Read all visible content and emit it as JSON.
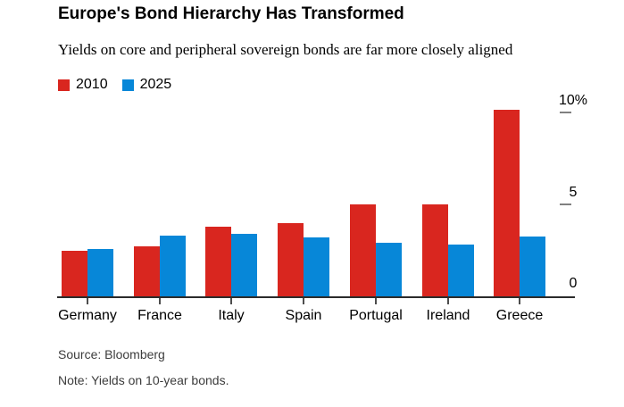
{
  "chart_data": {
    "type": "bar",
    "title": "Europe's Bond Hierarchy Has Transformed",
    "subtitle": "Yields on core and peripheral sovereign bonds are far more closely aligned",
    "categories": [
      "Germany",
      "France",
      "Italy",
      "Spain",
      "Portugal",
      "Ireland",
      "Greece"
    ],
    "series": [
      {
        "name": "2010",
        "color": "#d9261f",
        "values": [
          2.5,
          2.75,
          3.8,
          4.0,
          5.0,
          5.0,
          10.2
        ]
      },
      {
        "name": "2025",
        "color": "#0787d8",
        "values": [
          2.6,
          3.3,
          3.4,
          3.2,
          2.95,
          2.85,
          3.25
        ]
      }
    ],
    "xlabel": "",
    "ylabel": "",
    "y_ticks": [
      {
        "value": 10,
        "label": "10%"
      },
      {
        "value": 5,
        "label": "5"
      },
      {
        "value": 0,
        "label": "0"
      }
    ],
    "ylim": [
      0,
      10.5
    ],
    "grid": false,
    "legend_position": "top-left",
    "source": "Source: Bloomberg",
    "note": "Note: Yields on 10-year bonds."
  },
  "style": {
    "background": "#ffffff",
    "text": "#000000",
    "footer_text": "#3c3c3c",
    "axis_line": "#2b2b2b",
    "x_tick": "#4d4d4d",
    "y_tick_dash": "#808080"
  }
}
